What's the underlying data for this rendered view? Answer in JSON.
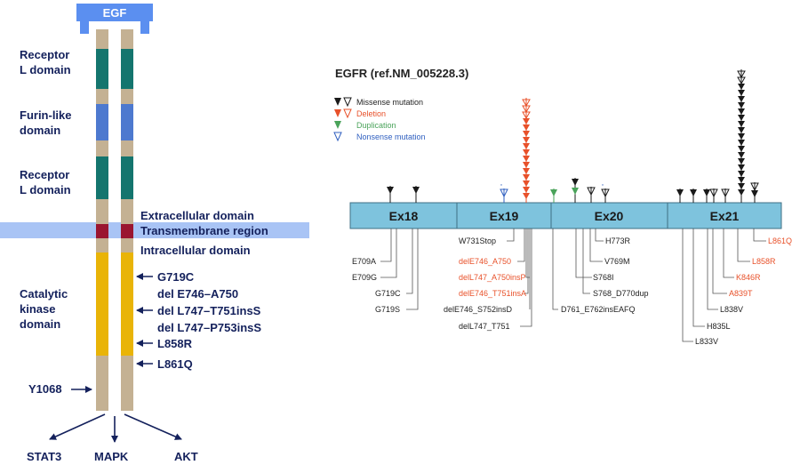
{
  "left_panel": {
    "egf_label": "EGF",
    "domains": {
      "receptor_l_1": [
        "Receptor",
        "L domain"
      ],
      "furin_like": [
        "Furin-like",
        "domain"
      ],
      "receptor_l_2": [
        "Receptor",
        "L domain"
      ],
      "catalytic": [
        "Catalytic",
        "kinase",
        "domain"
      ]
    },
    "regions": {
      "extracellular": "Extracellular domain",
      "transmembrane": "Transmembrane region",
      "intracellular": "Intracellular domain"
    },
    "mutations": [
      "G719C",
      "del E746–A750",
      "del L747–T751insS",
      "del L747–P753insS",
      "L858R",
      "L861Q"
    ],
    "phospho_site": "Y1068",
    "pathways": [
      "STAT3",
      "MAPK",
      "AKT"
    ],
    "colors": {
      "egf_blue": "#5b8ff0",
      "receptor_teal": "#14756e",
      "furin_blue": "#4d79cf",
      "tan": "#c4b193",
      "transmembrane_red": "#9a1530",
      "kinase_gold": "#e9b407",
      "membrane_band": "#a9c4f5",
      "text_navy": "#14215c"
    }
  },
  "right_panel": {
    "title": "EGFR (ref.NM_005228.3)",
    "legend": [
      {
        "label": "Missense mutation",
        "color": "#1a1a1a"
      },
      {
        "label": "Deletion",
        "color": "#e8512a"
      },
      {
        "label": "Duplication",
        "color": "#4aa35a"
      },
      {
        "label": "Nonsense mutation",
        "color": "#3060c0"
      }
    ],
    "exons": [
      "Ex18",
      "Ex19",
      "Ex20",
      "Ex21"
    ],
    "exon_color": "#7ec3dd",
    "variants": {
      "E709A": "E709A",
      "E709G": "E709G",
      "G719C": "G719C",
      "G719S": "G719S",
      "W731Stop": "W731Stop",
      "delE746_A750": "delE746_A750",
      "delL747_A750insP": "delL747_A750insP",
      "delE746_T751insA": "delE746_T751insA",
      "delE746_S752insD": "delE746_S752insD",
      "delL747_T751": "delL747_T751",
      "D761_E762insEAFQ": "D761_E762insEAFQ",
      "S768I": "S768I",
      "S768_D770dup": "S768_D770dup",
      "H773R": "H773R",
      "V769M": "V769M",
      "L861Q": "L861Q",
      "L858R": "L858R",
      "K846R": "K846R",
      "A839T": "A839T",
      "L838V": "L838V",
      "H835L": "H835L",
      "L833V": "L833V"
    }
  }
}
